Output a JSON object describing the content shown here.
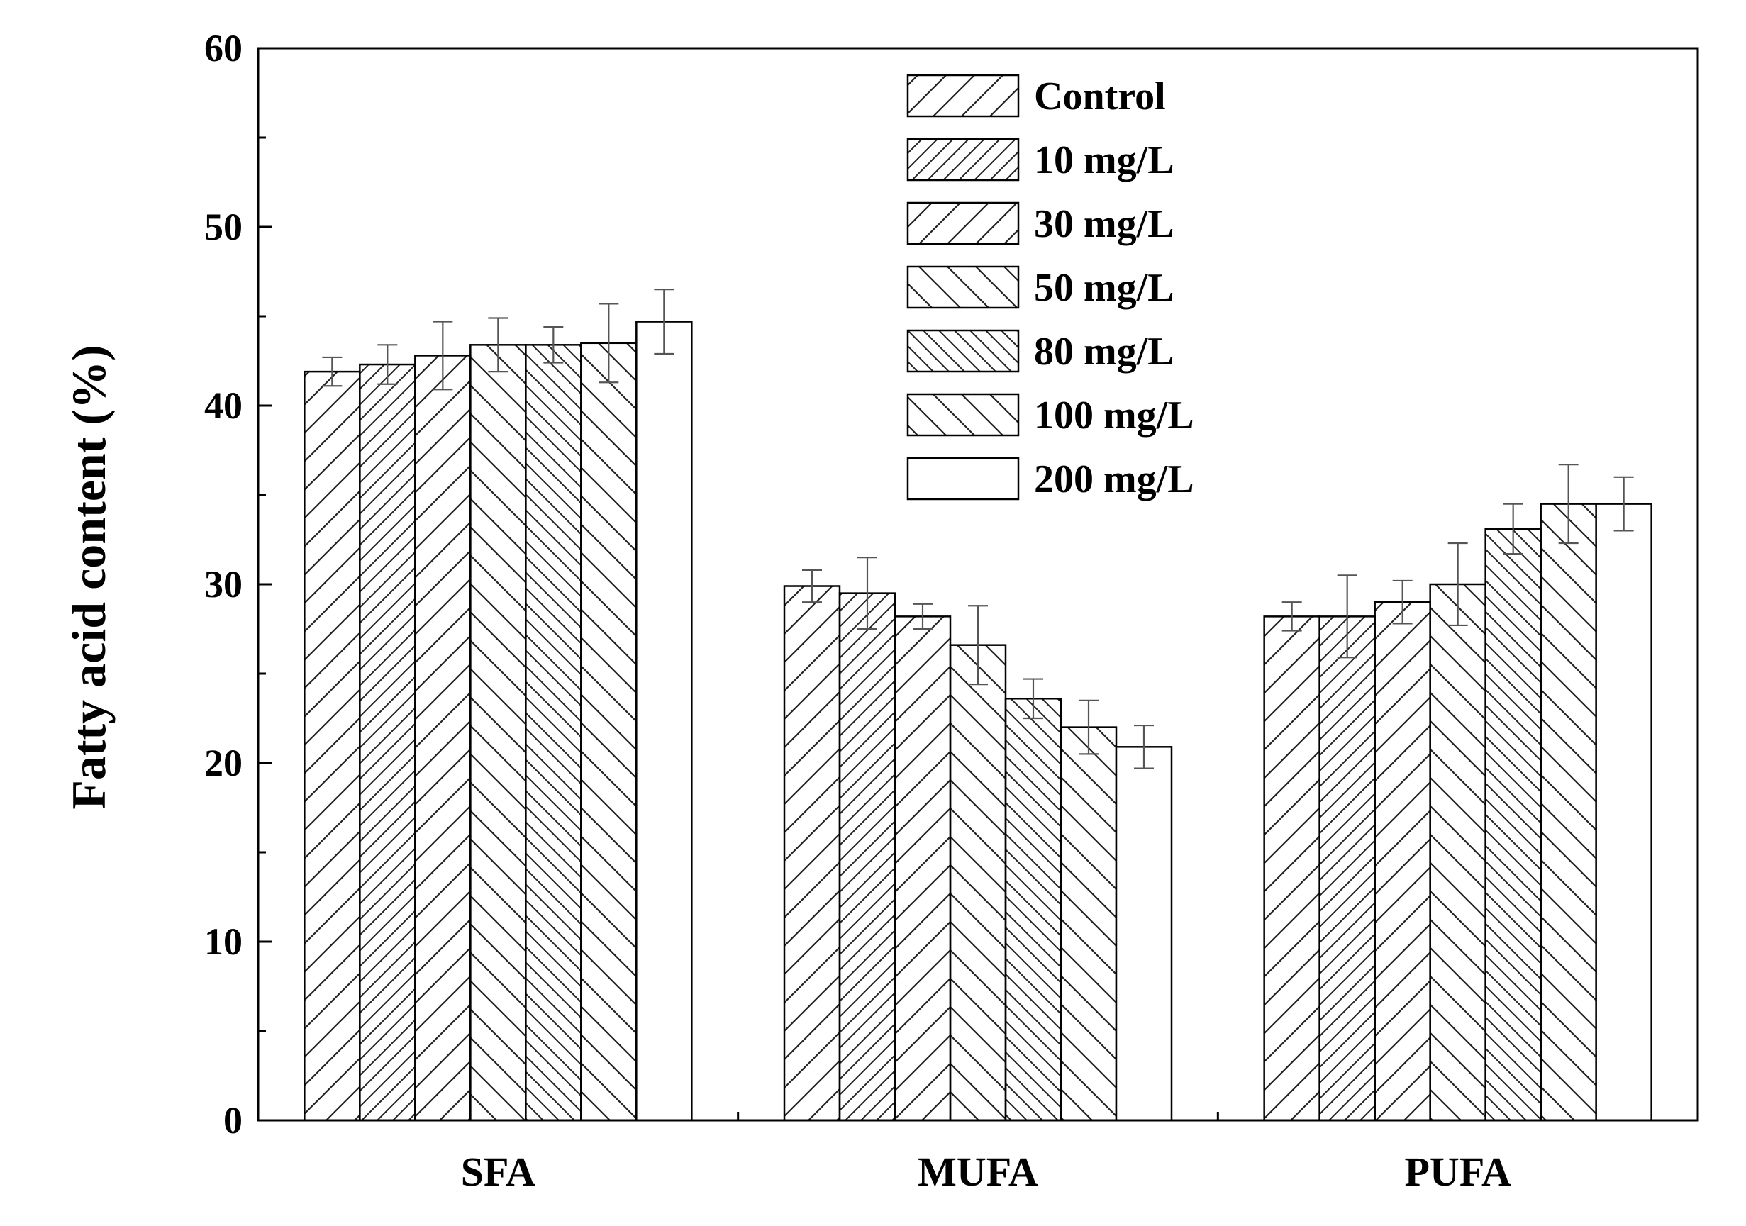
{
  "chart_data": {
    "type": "bar",
    "title": "",
    "xlabel": "",
    "ylabel": "Fatty acid content (%)",
    "ylim": [
      0,
      60
    ],
    "yticks": [
      "0",
      "10",
      "20",
      "30",
      "40",
      "50",
      "60"
    ],
    "categories": [
      "SFA",
      "MUFA",
      "PUFA"
    ],
    "legend_position": "top-right",
    "grid": false,
    "series": [
      {
        "name": "Control",
        "pattern": "hatch-forward",
        "values": [
          41.9,
          29.9,
          28.2
        ],
        "errors": [
          0.8,
          0.9,
          0.8
        ]
      },
      {
        "name": "10 mg/L",
        "pattern": "hatch-forward-dense",
        "values": [
          42.3,
          29.5,
          28.2
        ],
        "errors": [
          1.1,
          2.0,
          2.3
        ]
      },
      {
        "name": "30 mg/L",
        "pattern": "hatch-forward",
        "values": [
          42.8,
          28.2,
          29.0
        ],
        "errors": [
          1.9,
          0.7,
          1.2
        ]
      },
      {
        "name": "50 mg/L",
        "pattern": "hatch-back",
        "values": [
          43.4,
          26.6,
          30.0
        ],
        "errors": [
          1.5,
          2.2,
          2.3
        ]
      },
      {
        "name": "80 mg/L",
        "pattern": "hatch-back-dense",
        "values": [
          43.4,
          23.6,
          33.1
        ],
        "errors": [
          1.0,
          1.1,
          1.4
        ]
      },
      {
        "name": "100 mg/L",
        "pattern": "hatch-back",
        "values": [
          43.5,
          22.0,
          34.5
        ],
        "errors": [
          2.2,
          1.5,
          2.2
        ]
      },
      {
        "name": "200 mg/L",
        "pattern": "none",
        "values": [
          44.7,
          20.9,
          34.5
        ],
        "errors": [
          1.8,
          1.2,
          1.5
        ]
      }
    ]
  }
}
